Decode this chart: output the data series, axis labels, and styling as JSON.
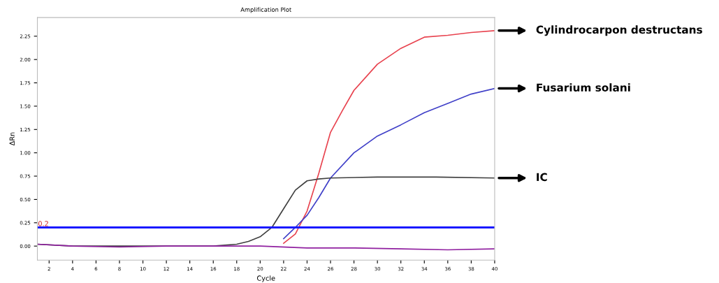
{
  "chart_data": {
    "type": "line",
    "title": "Amplification Plot",
    "xlabel": "Cycle",
    "ylabel": "ΔRn",
    "xlim": [
      1,
      40
    ],
    "ylim": [
      -0.15,
      2.45
    ],
    "xticks": [
      2,
      4,
      6,
      8,
      10,
      12,
      14,
      16,
      18,
      20,
      22,
      24,
      26,
      28,
      30,
      32,
      34,
      36,
      38,
      40
    ],
    "yticks": [
      {
        "value": 0,
        "label": "0.00"
      },
      {
        "value": 0.25,
        "label": "0.25"
      },
      {
        "value": 0.5,
        "label": "0.50"
      },
      {
        "value": 0.75,
        "label": "0.75"
      },
      {
        "value": 1,
        "label": "1.00"
      },
      {
        "value": 1.25,
        "label": "1.25"
      },
      {
        "value": 1.5,
        "label": "1.50"
      },
      {
        "value": 1.75,
        "label": "1.75"
      },
      {
        "value": 2,
        "label": "2.00"
      },
      {
        "value": 2.25,
        "label": "2.25"
      }
    ],
    "grid": false,
    "legend": false,
    "ref_lines": [
      {
        "axis": "y",
        "value": 0.2,
        "label": "0.2",
        "color": "#1a1aff"
      }
    ],
    "series": [
      {
        "name": "Cylindrocarpon destructans",
        "color": "#e8434f",
        "x": [
          22,
          23,
          24,
          25,
          26,
          27,
          28,
          30,
          32,
          34,
          36,
          38,
          40
        ],
        "values": [
          0.03,
          0.13,
          0.375,
          0.78,
          1.22,
          1.45,
          1.67,
          1.95,
          2.12,
          2.24,
          2.26,
          2.29,
          2.31
        ]
      },
      {
        "name": "Fusarium solani",
        "color": "#4040c8",
        "x": [
          22,
          23,
          24,
          25,
          26,
          28,
          30,
          32,
          34,
          36,
          38,
          40
        ],
        "values": [
          0.08,
          0.2,
          0.33,
          0.52,
          0.73,
          1.0,
          1.18,
          1.3,
          1.43,
          1.53,
          1.63,
          1.69
        ]
      },
      {
        "name": "IC",
        "color": "#404040",
        "x": [
          1,
          4,
          8,
          12,
          16,
          18,
          19,
          20,
          21,
          22,
          23,
          24,
          25,
          26,
          30,
          35,
          40
        ],
        "values": [
          0.02,
          0,
          0,
          0,
          0,
          0.02,
          0.05,
          0.1,
          0.2,
          0.4,
          0.6,
          0.7,
          0.72,
          0.73,
          0.74,
          0.74,
          0.73
        ]
      },
      {
        "color": "#9020a0",
        "x": [
          1,
          4,
          8,
          12,
          16,
          20,
          24,
          28,
          32,
          36,
          40
        ],
        "values": [
          0.02,
          0,
          -0.01,
          0,
          0,
          0,
          -0.02,
          -0.02,
          -0.03,
          -0.04,
          -0.03
        ]
      }
    ]
  }
}
